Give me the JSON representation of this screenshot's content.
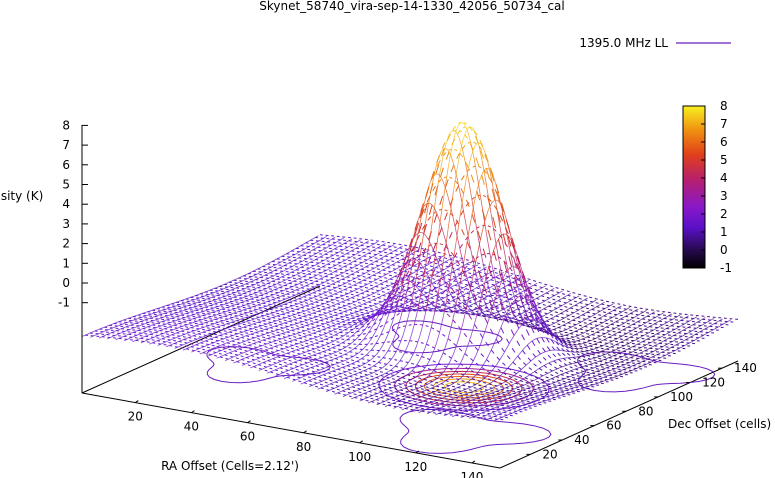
{
  "chart_data": {
    "type": "surface3d",
    "title": "Skynet_58740_vira-sep-14-1330_42056_50734_cal",
    "zlabel": "Intensity (K)",
    "xlabel": "RA Offset (Cells=2.12')",
    "ylabel": "Dec Offset (cells)",
    "zlim": [
      -1,
      8
    ],
    "ztick_labels": [
      "-1",
      "0",
      "1",
      "2",
      "3",
      "4",
      "5",
      "6",
      "7",
      "8"
    ],
    "xtick_labels": [
      "20",
      "40",
      "60",
      "80",
      "100",
      "120",
      "140"
    ],
    "ytick_labels": [
      "20",
      "40",
      "60",
      "80",
      "100",
      "120",
      "140"
    ],
    "colorbar": {
      "range": [
        -1,
        8
      ],
      "tick_labels": [
        "8",
        "7",
        "6",
        "5",
        "4",
        "3",
        "2",
        "1",
        "0",
        "-1"
      ]
    },
    "legend": {
      "position": "top-right",
      "entries": [
        {
          "label": "1395.0 MHz LL",
          "color": "#6a1fbf"
        }
      ]
    },
    "series": [
      {
        "name": "1395.0 MHz LL",
        "grid_extent": {
          "x": [
            1,
            150
          ],
          "y": [
            1,
            150
          ]
        },
        "baseline_k": 0.5,
        "peak": {
          "x": 95,
          "y": 75,
          "value_k": 8.3,
          "width_cells": 13
        }
      }
    ]
  }
}
